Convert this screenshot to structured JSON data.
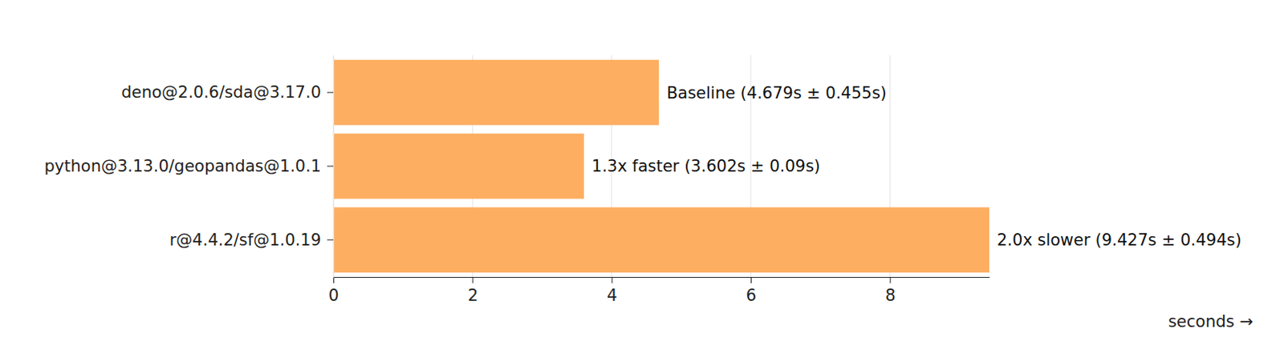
{
  "chart_data": {
    "type": "bar",
    "orientation": "horizontal",
    "categories": [
      "deno@2.0.6/sda@3.17.0",
      "python@3.13.0/geopandas@1.0.1",
      "r@4.4.2/sf@1.0.19"
    ],
    "values": [
      4.679,
      3.602,
      9.427
    ],
    "value_labels": [
      "Baseline (4.679s ± 0.455s)",
      "1.3x faster (3.602s ± 0.09s)",
      "2.0x slower (9.427s ± 0.494s)"
    ],
    "data_labels": true,
    "color": "#fdae61",
    "x_label": "seconds →",
    "xlim": [
      0,
      9.427
    ],
    "xticks": [
      0,
      2,
      4,
      6,
      8
    ],
    "grid": true
  }
}
